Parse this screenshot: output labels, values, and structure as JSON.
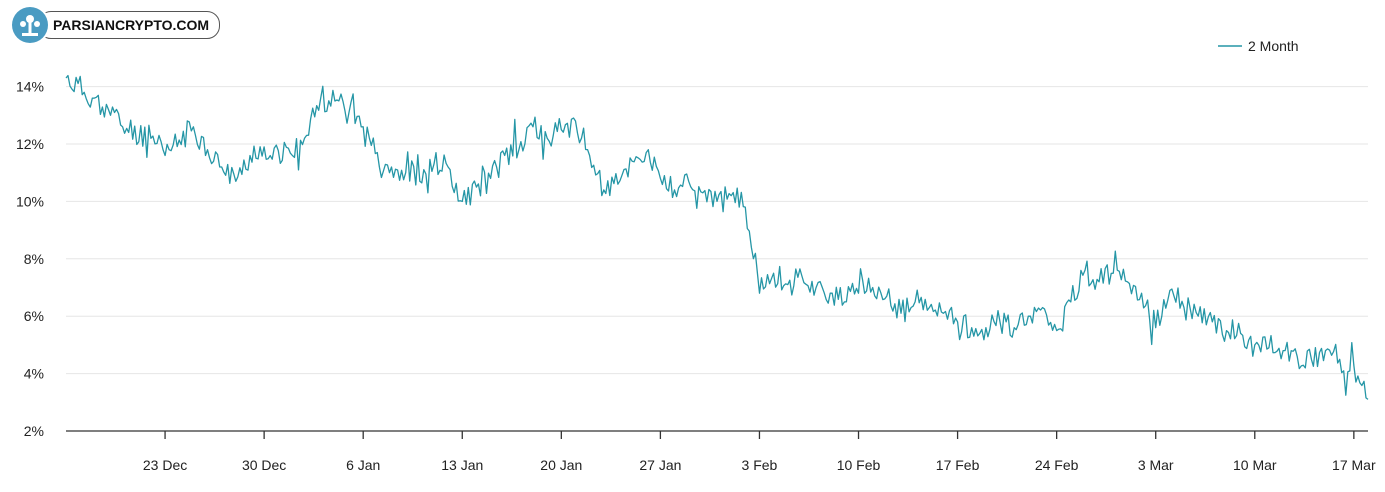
{
  "watermark": {
    "text": "PARSIANCRYPTO.COM"
  },
  "colors": {
    "line": "#2596a6",
    "grid": "#e6e6e6",
    "axis": "#333333",
    "text": "#222222",
    "watermark_bg": "#4a9bc2"
  },
  "chart_data": {
    "type": "line",
    "title": "",
    "xlabel": "",
    "ylabel": "",
    "legend": {
      "position": "top-right"
    },
    "series": [
      {
        "name": "2 Month",
        "color": "#2596a6",
        "x": [
          "2024-12-16",
          "2024-12-18",
          "2024-12-19",
          "2024-12-20",
          "2024-12-22",
          "2024-12-23",
          "2024-12-25",
          "2024-12-26",
          "2024-12-27",
          "2024-12-28",
          "2024-12-29",
          "2024-12-30",
          "2025-01-01",
          "2025-01-02",
          "2025-01-03",
          "2025-01-04",
          "2025-01-05",
          "2025-01-06",
          "2025-01-07",
          "2025-01-08",
          "2025-01-09",
          "2025-01-10",
          "2025-01-11",
          "2025-01-12",
          "2025-01-13",
          "2025-01-14",
          "2025-01-15",
          "2025-01-16",
          "2025-01-17",
          "2025-01-18",
          "2025-01-19",
          "2025-01-20",
          "2025-01-21",
          "2025-01-22",
          "2025-01-23",
          "2025-01-24",
          "2025-01-25",
          "2025-01-26",
          "2025-01-27",
          "2025-01-28",
          "2025-01-29",
          "2025-01-30",
          "2025-01-31",
          "2025-02-01",
          "2025-02-02",
          "2025-02-03",
          "2025-02-04",
          "2025-02-05",
          "2025-02-06",
          "2025-02-07",
          "2025-02-08",
          "2025-02-09",
          "2025-02-10",
          "2025-02-11",
          "2025-02-12",
          "2025-02-13",
          "2025-02-14",
          "2025-02-15",
          "2025-02-16",
          "2025-02-17",
          "2025-02-18",
          "2025-02-19",
          "2025-02-20",
          "2025-02-21",
          "2025-02-22",
          "2025-02-23",
          "2025-02-24",
          "2025-02-25",
          "2025-02-26",
          "2025-02-27",
          "2025-02-28",
          "2025-03-01",
          "2025-03-02",
          "2025-03-03",
          "2025-03-04",
          "2025-03-05",
          "2025-03-06",
          "2025-03-07",
          "2025-03-08",
          "2025-03-09",
          "2025-03-10",
          "2025-03-11",
          "2025-03-12",
          "2025-03-13",
          "2025-03-14",
          "2025-03-15",
          "2025-03-16",
          "2025-03-17",
          "2025-03-18"
        ],
        "values": [
          14.3,
          13.6,
          13.2,
          12.6,
          12.2,
          11.6,
          12.6,
          11.8,
          11.2,
          10.7,
          11.6,
          11.9,
          11.6,
          12.3,
          13.6,
          13.5,
          13.1,
          12.6,
          11.7,
          11.2,
          11.0,
          10.7,
          11.3,
          11.2,
          10.0,
          10.5,
          10.8,
          11.6,
          11.8,
          12.6,
          12.2,
          12.5,
          12.8,
          11.6,
          10.4,
          10.6,
          11.4,
          11.7,
          10.8,
          10.4,
          10.7,
          10.3,
          10.0,
          10.2,
          9.8,
          6.8,
          7.5,
          7.1,
          7.4,
          7.0,
          6.8,
          6.5,
          6.8,
          7.0,
          6.7,
          6.1,
          6.5,
          6.3,
          6.1,
          5.8,
          5.6,
          5.6,
          5.8,
          5.6,
          6.0,
          6.3,
          5.5,
          6.5,
          7.6,
          7.2,
          7.5,
          7.2,
          6.8,
          5.6,
          6.9,
          6.3,
          6.0,
          5.8,
          5.5,
          5.4,
          5.0,
          4.9,
          4.8,
          4.6,
          4.5,
          4.8,
          4.5,
          4.3,
          3.1
        ]
      }
    ],
    "xticks": [
      "23 Dec",
      "30 Dec",
      "6 Jan",
      "13 Jan",
      "20 Jan",
      "27 Jan",
      "3 Feb",
      "10 Feb",
      "17 Feb",
      "24 Feb",
      "3 Mar",
      "10 Mar",
      "17 Mar"
    ],
    "xtick_dates": [
      "2024-12-23",
      "2024-12-30",
      "2025-01-06",
      "2025-01-13",
      "2025-01-20",
      "2025-01-27",
      "2025-02-03",
      "2025-02-10",
      "2025-02-17",
      "2025-02-24",
      "2025-03-03",
      "2025-03-10",
      "2025-03-17"
    ],
    "xlim": [
      "2024-12-16",
      "2025-03-18"
    ],
    "yticks": [
      "2%",
      "4%",
      "6%",
      "8%",
      "10%",
      "12%",
      "14%"
    ],
    "ylim": [
      2,
      14.3
    ],
    "grid": true
  }
}
